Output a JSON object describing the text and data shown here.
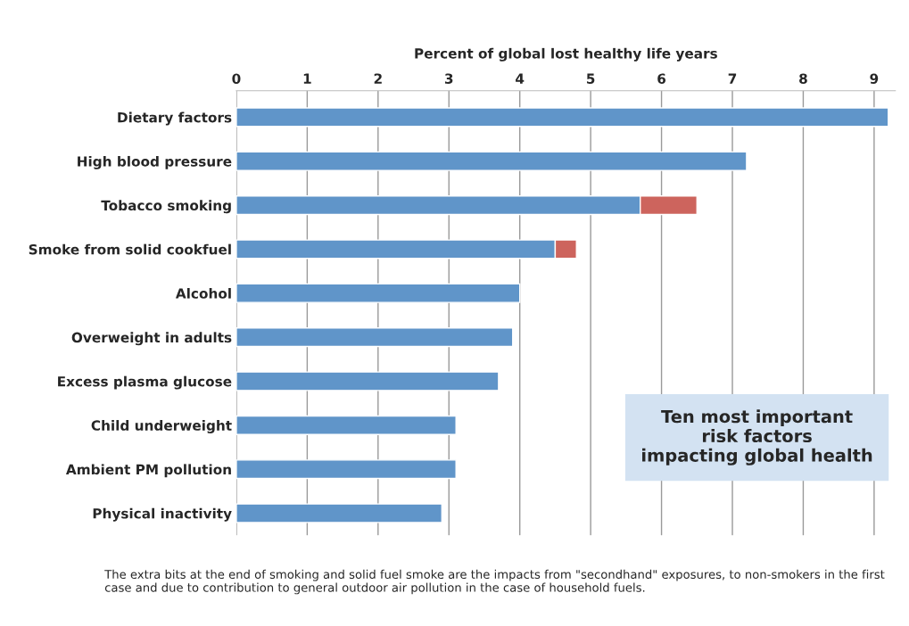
{
  "chart_data": {
    "type": "bar",
    "orientation": "horizontal",
    "stacked": true,
    "xlabel": "Percent of global lost healthy life years",
    "categories": [
      "Dietary factors",
      "High blood pressure",
      "Tobacco smoking",
      "Smoke from solid cookfuel",
      "Alcohol",
      "Overweight in adults",
      "Excess plasma glucose",
      "Child underweight",
      "Ambient PM pollution",
      "Physical inactivity"
    ],
    "series": [
      {
        "color": "#6095c9",
        "values": [
          9.2,
          7.2,
          5.7,
          4.5,
          4.0,
          3.9,
          3.7,
          3.1,
          3.1,
          2.9
        ]
      },
      {
        "color": "#cd645d",
        "values": [
          null,
          null,
          0.8,
          0.3,
          null,
          null,
          null,
          null,
          null,
          null
        ]
      }
    ],
    "xlim": [
      0,
      9.3
    ],
    "xticks": [
      0,
      1,
      2,
      3,
      4,
      5,
      6,
      7,
      8,
      9
    ],
    "grid": "x",
    "legend": false,
    "annotations": [
      "Ten most important\nrisk factors\nimpacting global health",
      "The extra bits at the end of smoking and solid fuel smoke are the impacts from \"secondhand\" exposures, to non-smokers in the first case and due to contribution to general outdoor air pollution in the case of household fuels."
    ]
  }
}
